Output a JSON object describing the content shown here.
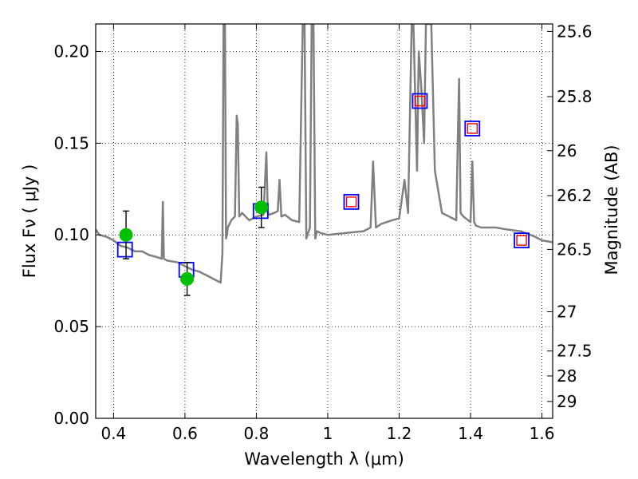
{
  "chart_data": {
    "type": "line",
    "title": "",
    "xlabel": "Wavelength  λ (μm)",
    "ylabel": "Flux  Fν  ( μJy )",
    "ylabel_right": "Magnitude (AB)",
    "xlim": [
      0.35,
      1.63
    ],
    "ylim": [
      0.0,
      0.215
    ],
    "grid": true,
    "x_ticks": [
      0.4,
      0.6,
      0.8,
      1.0,
      1.2,
      1.4,
      1.6
    ],
    "x_tick_labels": [
      "0.4",
      "0.6",
      "0.8",
      "1",
      "1.2",
      "1.4",
      "1.6"
    ],
    "y_ticks": [
      0.0,
      0.05,
      0.1,
      0.15,
      0.2
    ],
    "y_tick_labels": [
      "0.00",
      "0.05",
      "0.10",
      "0.15",
      "0.20"
    ],
    "right_ticks": [
      {
        "label": "25.6",
        "flux": 0.2109
      },
      {
        "label": "25.8",
        "flux": 0.1754
      },
      {
        "label": "26",
        "flux": 0.1459
      },
      {
        "label": "26.2",
        "flux": 0.1214
      },
      {
        "label": "26.5",
        "flux": 0.0921
      },
      {
        "label": "27",
        "flux": 0.0581
      },
      {
        "label": "27.5",
        "flux": 0.0367
      },
      {
        "label": "28",
        "flux": 0.0231
      },
      {
        "label": "29",
        "flux": 0.0092
      }
    ],
    "series": [
      {
        "name": "model spectrum",
        "style": "line",
        "color": "#808080",
        "x": [
          0.35,
          0.36,
          0.38,
          0.4,
          0.42,
          0.44,
          0.46,
          0.48,
          0.5,
          0.52,
          0.535,
          0.538,
          0.541,
          0.55,
          0.58,
          0.6,
          0.62,
          0.64,
          0.66,
          0.68,
          0.7,
          0.705,
          0.708,
          0.712,
          0.715,
          0.718,
          0.72,
          0.73,
          0.74,
          0.745,
          0.748,
          0.752,
          0.76,
          0.78,
          0.8,
          0.82,
          0.828,
          0.832,
          0.836,
          0.85,
          0.86,
          0.865,
          0.87,
          0.88,
          0.9,
          0.92,
          0.93,
          0.935,
          0.94,
          0.95,
          0.955,
          0.96,
          0.965,
          0.97,
          0.98,
          1.0,
          1.05,
          1.1,
          1.12,
          1.127,
          1.135,
          1.15,
          1.18,
          1.2,
          1.215,
          1.225,
          1.235,
          1.24,
          1.25,
          1.255,
          1.262,
          1.27,
          1.275,
          1.28,
          1.29,
          1.3,
          1.32,
          1.34,
          1.36,
          1.365,
          1.368,
          1.372,
          1.38,
          1.4,
          1.405,
          1.41,
          1.415,
          1.43,
          1.47,
          1.5,
          1.54,
          1.58,
          1.6,
          1.63
        ],
        "y": [
          0.103,
          0.1,
          0.099,
          0.097,
          0.094,
          0.093,
          0.091,
          0.091,
          0.089,
          0.088,
          0.087,
          0.118,
          0.087,
          0.086,
          0.085,
          0.083,
          0.081,
          0.08,
          0.078,
          0.076,
          0.074,
          0.09,
          0.215,
          0.215,
          0.098,
          0.1,
          0.104,
          0.108,
          0.11,
          0.165,
          0.16,
          0.11,
          0.112,
          0.108,
          0.11,
          0.111,
          0.145,
          0.112,
          0.111,
          0.112,
          0.113,
          0.13,
          0.11,
          0.111,
          0.108,
          0.107,
          0.215,
          0.215,
          0.098,
          0.104,
          0.215,
          0.215,
          0.098,
          0.102,
          0.101,
          0.1,
          0.101,
          0.102,
          0.104,
          0.14,
          0.104,
          0.106,
          0.108,
          0.109,
          0.13,
          0.112,
          0.215,
          0.215,
          0.135,
          0.2,
          0.18,
          0.15,
          0.215,
          0.215,
          0.215,
          0.135,
          0.112,
          0.11,
          0.108,
          0.16,
          0.185,
          0.112,
          0.11,
          0.107,
          0.14,
          0.107,
          0.105,
          0.104,
          0.104,
          0.103,
          0.102,
          0.099,
          0.097,
          0.096
        ]
      },
      {
        "name": "model photometry (blue squares)",
        "style": "square",
        "color": "#0000ff",
        "x": [
          0.432,
          0.604,
          0.812,
          1.066,
          1.258,
          1.405,
          1.543
        ],
        "y": [
          0.092,
          0.081,
          0.113,
          0.118,
          0.173,
          0.158,
          0.097
        ]
      },
      {
        "name": "model photometry (red squares)",
        "style": "square-small",
        "color": "#ff0000",
        "x": [
          1.066,
          1.258,
          1.405,
          1.543
        ],
        "y": [
          0.118,
          0.173,
          0.158,
          0.097
        ]
      },
      {
        "name": "observed photometry",
        "style": "circle",
        "color": "#00c000",
        "x": [
          0.435,
          0.606,
          0.814
        ],
        "y": [
          0.1,
          0.076,
          0.115
        ],
        "err_low": [
          0.087,
          0.067,
          0.104
        ],
        "err_high": [
          0.113,
          0.085,
          0.126
        ]
      }
    ]
  }
}
